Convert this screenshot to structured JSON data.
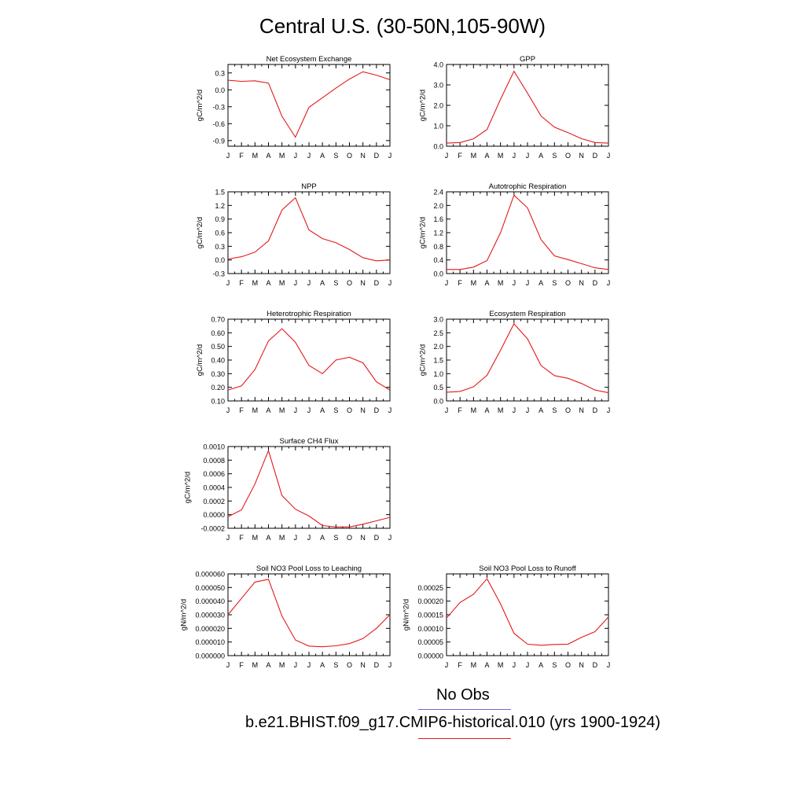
{
  "title": "Central U.S. (30-50N,105-90W)",
  "months": [
    "J",
    "F",
    "M",
    "A",
    "M",
    "J",
    "J",
    "A",
    "S",
    "O",
    "N",
    "D",
    "J"
  ],
  "line_color": "#e31a1c",
  "legend": {
    "obs_label": "No Obs",
    "obs_color": "#6b6bdb",
    "model_label": "b.e21.BHIST.f09_g17.CMIP6-historical.010 (yrs 1900-1924)",
    "model_color": "#e31a1c"
  },
  "chart_data": [
    {
      "type": "line",
      "title": "Net Ecosystem Exchange",
      "ylabel": "gC/m^2/d",
      "ylim": [
        -1.0,
        0.45
      ],
      "yticks": [
        0.3,
        0.0,
        -0.3,
        -0.6,
        -0.9
      ],
      "yticklabels": [
        "0.3",
        "0.0",
        "-0.3",
        "-0.6",
        "-0.9"
      ],
      "values": [
        0.17,
        0.15,
        0.16,
        0.12,
        -0.47,
        -0.84,
        -0.31,
        -0.14,
        0.03,
        0.19,
        0.32,
        0.26,
        0.18
      ]
    },
    {
      "type": "line",
      "title": "GPP",
      "ylabel": "gC/m^2/d",
      "ylim": [
        0.0,
        4.0
      ],
      "yticks": [
        0.0,
        1.0,
        2.0,
        3.0,
        4.0
      ],
      "yticklabels": [
        "0.0",
        "1.0",
        "2.0",
        "3.0",
        "4.0"
      ],
      "values": [
        0.15,
        0.18,
        0.36,
        0.82,
        2.3,
        3.67,
        2.6,
        1.48,
        0.93,
        0.66,
        0.37,
        0.18,
        0.15
      ]
    },
    {
      "type": "line",
      "title": "NPP",
      "ylabel": "gC/m^2/d",
      "ylim": [
        -0.3,
        1.5
      ],
      "yticks": [
        -0.3,
        0.0,
        0.3,
        0.6,
        0.9,
        1.2,
        1.5
      ],
      "yticklabels": [
        "-0.3",
        "0.0",
        "0.3",
        "0.6",
        "0.9",
        "1.2",
        "1.5"
      ],
      "values": [
        0.02,
        0.07,
        0.17,
        0.42,
        1.1,
        1.37,
        0.66,
        0.47,
        0.38,
        0.23,
        0.05,
        -0.02,
        0.0
      ]
    },
    {
      "type": "line",
      "title": "Autotrophic Respiration",
      "ylabel": "gC/m^2/d",
      "ylim": [
        0.0,
        2.4
      ],
      "yticks": [
        0.0,
        0.4,
        0.8,
        1.2,
        1.6,
        2.0,
        2.4
      ],
      "yticklabels": [
        "0.0",
        "0.4",
        "0.8",
        "1.2",
        "1.6",
        "2.0",
        "2.4"
      ],
      "values": [
        0.12,
        0.12,
        0.19,
        0.38,
        1.2,
        2.3,
        1.93,
        1.0,
        0.52,
        0.41,
        0.29,
        0.17,
        0.12
      ]
    },
    {
      "type": "line",
      "title": "Heterotrophic Respiration",
      "ylabel": "gC/m^2/d",
      "ylim": [
        0.1,
        0.7
      ],
      "yticks": [
        0.1,
        0.2,
        0.3,
        0.4,
        0.5,
        0.6,
        0.7
      ],
      "yticklabels": [
        "0.10",
        "0.20",
        "0.30",
        "0.40",
        "0.50",
        "0.60",
        "0.70"
      ],
      "values": [
        0.18,
        0.21,
        0.33,
        0.54,
        0.63,
        0.53,
        0.36,
        0.3,
        0.4,
        0.42,
        0.38,
        0.24,
        0.18
      ]
    },
    {
      "type": "line",
      "title": "Ecosystem Respiration",
      "ylabel": "gC/m^2/d",
      "ylim": [
        0.0,
        3.0
      ],
      "yticks": [
        0.0,
        0.5,
        1.0,
        1.5,
        2.0,
        2.5,
        3.0
      ],
      "yticklabels": [
        "0.0",
        "0.5",
        "1.0",
        "1.5",
        "2.0",
        "2.5",
        "3.0"
      ],
      "values": [
        0.32,
        0.35,
        0.52,
        0.94,
        1.86,
        2.83,
        2.28,
        1.3,
        0.93,
        0.83,
        0.64,
        0.4,
        0.3
      ]
    },
    {
      "type": "line",
      "title": "Surface CH4 Flux",
      "ylabel": "gC/m^2/d",
      "ylim": [
        -0.0002,
        0.001
      ],
      "yticks": [
        -0.0002,
        0.0,
        0.0002,
        0.0004,
        0.0006,
        0.0008,
        0.001
      ],
      "yticklabels": [
        "-0.0002",
        "0.0000",
        "0.0002",
        "0.0004",
        "0.0006",
        "0.0008",
        "0.0010"
      ],
      "values": [
        -3e-05,
        7e-05,
        0.00045,
        0.00094,
        0.00028,
        8e-05,
        -2e-05,
        -0.00016,
        -0.00018,
        -0.00018,
        -0.00014,
        -9e-05,
        -4e-05
      ]
    },
    {
      "type": "line",
      "title": "Soil NO3 Pool Loss to Leaching",
      "ylabel": "gN/m^2/d",
      "ylim": [
        0.0,
        6e-05
      ],
      "yticks": [
        0.0,
        1e-05,
        2e-05,
        3e-05,
        4e-05,
        5e-05,
        6e-05
      ],
      "yticklabels": [
        "0.000000",
        "0.000010",
        "0.000020",
        "0.000030",
        "0.000040",
        "0.000050",
        "0.000060"
      ],
      "values": [
        3e-05,
        4.2e-05,
        5.4e-05,
        5.6e-05,
        2.9e-05,
        1.15e-05,
        7e-06,
        6.5e-06,
        7.2e-06,
        8.8e-06,
        1.25e-05,
        2e-05,
        3e-05
      ]
    },
    {
      "type": "line",
      "title": "Soil NO3 Pool Loss to Runoff",
      "ylabel": "gN/m^2/d",
      "ylim": [
        0.0,
        0.0003
      ],
      "yticks": [
        0.0,
        5e-05,
        0.0001,
        0.00015,
        0.0002,
        0.00025
      ],
      "yticklabels": [
        "0.00000",
        "0.00005",
        "0.00010",
        "0.00015",
        "0.00020",
        "0.00025"
      ],
      "values": [
        0.000138,
        0.000195,
        0.000225,
        0.000282,
        0.00019,
        8.2e-05,
        4.2e-05,
        3.8e-05,
        4.1e-05,
        4.2e-05,
        6.7e-05,
        8.8e-05,
        0.000142
      ]
    }
  ]
}
